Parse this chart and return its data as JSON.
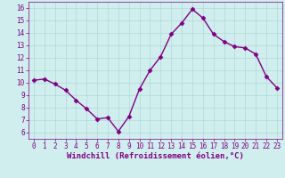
{
  "x": [
    0,
    1,
    2,
    3,
    4,
    5,
    6,
    7,
    8,
    9,
    10,
    11,
    12,
    13,
    14,
    15,
    16,
    17,
    18,
    19,
    20,
    21,
    22,
    23
  ],
  "y": [
    10.2,
    10.3,
    9.9,
    9.4,
    8.6,
    7.9,
    7.1,
    7.2,
    6.1,
    7.3,
    9.5,
    11.0,
    12.1,
    13.9,
    14.8,
    15.9,
    15.2,
    13.9,
    13.3,
    12.9,
    12.8,
    12.3,
    10.5,
    9.6
  ],
  "line_color": "#800080",
  "marker": "D",
  "marker_size": 2.5,
  "xlabel": "Windchill (Refroidissement éolien,°C)",
  "xlabel_fontsize": 6.5,
  "xlim": [
    -0.5,
    23.5
  ],
  "ylim": [
    5.5,
    16.5
  ],
  "yticks": [
    6,
    7,
    8,
    9,
    10,
    11,
    12,
    13,
    14,
    15,
    16
  ],
  "xticks": [
    0,
    1,
    2,
    3,
    4,
    5,
    6,
    7,
    8,
    9,
    10,
    11,
    12,
    13,
    14,
    15,
    16,
    17,
    18,
    19,
    20,
    21,
    22,
    23
  ],
  "grid_color": "#b0d8d8",
  "bg_color": "#d0eeee",
  "tick_color": "#800080",
  "tick_fontsize": 5.5,
  "xlabel_fontweight": "bold",
  "line_width": 1.0
}
